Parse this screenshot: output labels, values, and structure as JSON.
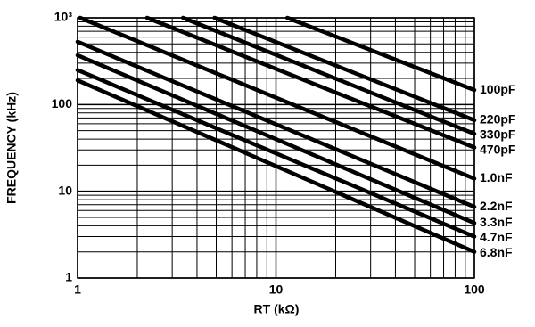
{
  "chart_data": {
    "type": "line",
    "xlabel": "RT (kΩ)",
    "ylabel": "FREQUENCY (kHz)",
    "xscale": "log",
    "yscale": "log",
    "xlim": [
      1,
      100
    ],
    "ylim": [
      1,
      1000
    ],
    "xticks": [
      1,
      10,
      100
    ],
    "yticks": [
      1,
      10,
      100,
      {
        "value": 1000,
        "label": "10³"
      }
    ],
    "grid": true,
    "series": [
      {
        "name": "100pF",
        "color": "#000000",
        "x": [
          11.4,
          100
        ],
        "values": [
          1000,
          147
        ]
      },
      {
        "name": "220pF",
        "color": "#000000",
        "x": [
          4.9,
          100
        ],
        "values": [
          1000,
          66
        ]
      },
      {
        "name": "330pF",
        "color": "#000000",
        "x": [
          3.4,
          100
        ],
        "values": [
          1000,
          46
        ]
      },
      {
        "name": "470pF",
        "color": "#000000",
        "x": [
          2.24,
          100
        ],
        "values": [
          1000,
          32
        ]
      },
      {
        "name": "1.0nF",
        "color": "#000000",
        "x": [
          1.03,
          100
        ],
        "values": [
          1000,
          14
        ]
      },
      {
        "name": "2.2nF",
        "color": "#000000",
        "x": [
          1,
          100
        ],
        "values": [
          530,
          6.6
        ]
      },
      {
        "name": "3.3nF",
        "color": "#000000",
        "x": [
          1,
          100
        ],
        "values": [
          370,
          4.3
        ]
      },
      {
        "name": "4.7nF",
        "color": "#000000",
        "x": [
          1,
          100
        ],
        "values": [
          250,
          3.0
        ]
      },
      {
        "name": "6.8nF",
        "color": "#000000",
        "x": [
          1,
          100
        ],
        "values": [
          190,
          2.0
        ]
      }
    ]
  }
}
